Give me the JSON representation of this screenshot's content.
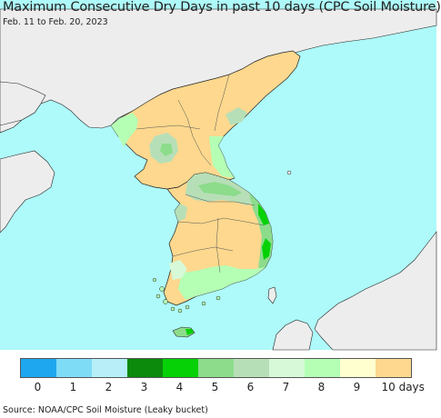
{
  "header": {
    "title": "Maximum Consecutive Dry Days in past 10 days (CPC Soil Moisture)",
    "subtitle": "Feb. 11 to Feb. 20, 2023"
  },
  "colors": {
    "sea": "#aef9f9",
    "land_outside": "#ededed",
    "border": "#222222"
  },
  "legend": {
    "labels": [
      "0",
      "1",
      "2",
      "3",
      "4",
      "5",
      "6",
      "7",
      "8",
      "9",
      "10 days"
    ],
    "colors": [
      "#1ea7ef",
      "#7fdcf7",
      "#b7eef7",
      "#0b8a0b",
      "#06d106",
      "#8cdc8c",
      "#b7dfb7",
      "#d7f9d7",
      "#b5ffb5",
      "#ffffcf",
      "#fdd88e"
    ]
  },
  "footer": {
    "source": "Source: NOAA/CPC Soil Moisture (Leaky bucket)"
  }
}
